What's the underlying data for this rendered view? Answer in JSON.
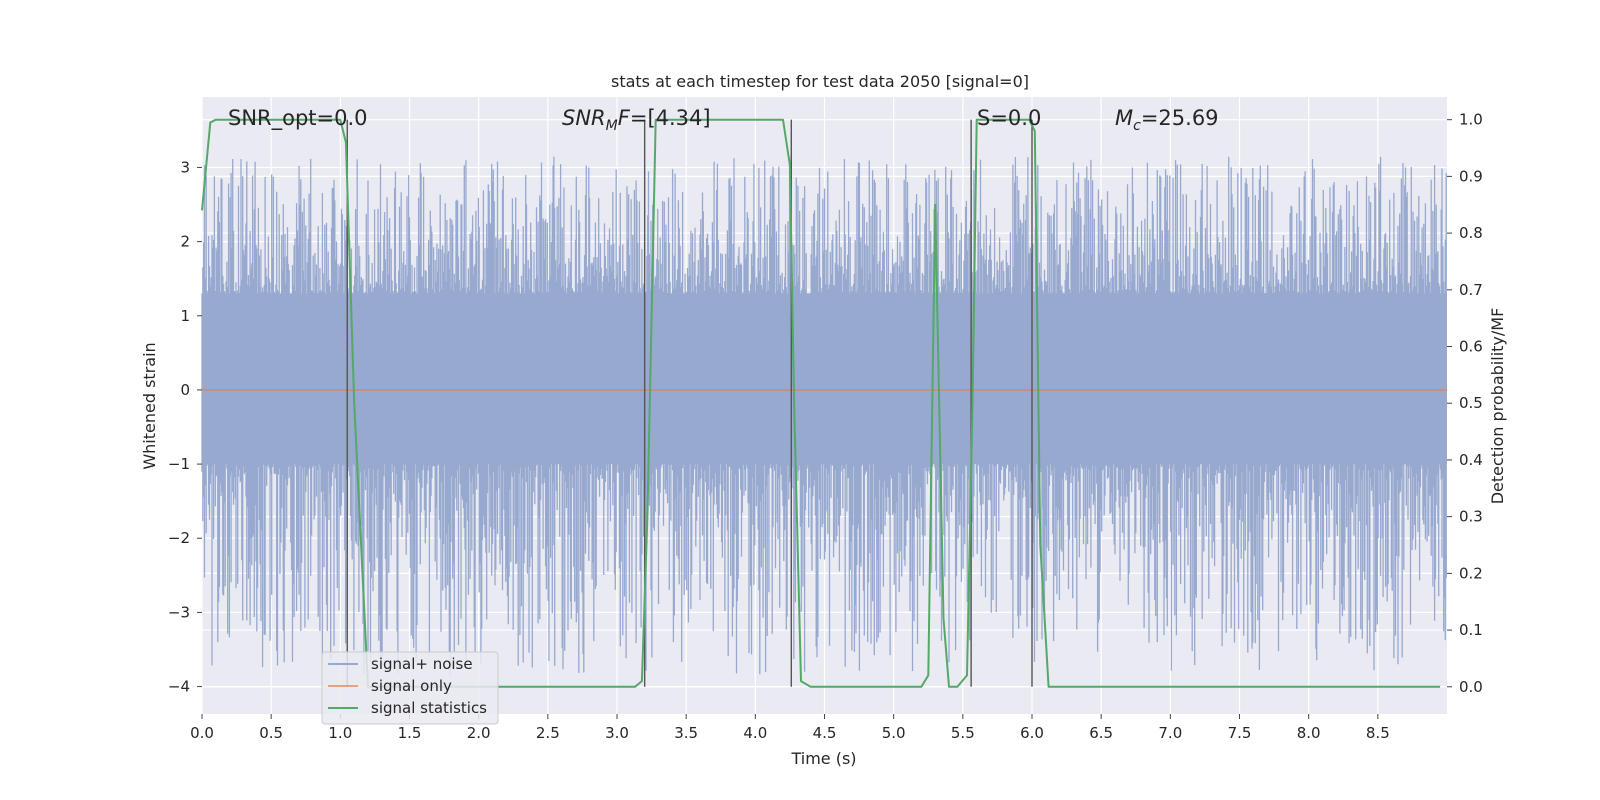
{
  "chart_data": {
    "type": "line",
    "title": "stats at each timestep for test data 2050 [signal=0]",
    "xlabel": "Time (s)",
    "ylabel": "Whitened strain",
    "y2label": "Detection probability/MF",
    "xlim": [
      0.0,
      9.0
    ],
    "ylim": [
      -4.37,
      3.95
    ],
    "y2lim": [
      -0.048,
      1.04
    ],
    "x_ticks": [
      "0.0",
      "0.5",
      "1.0",
      "1.5",
      "2.0",
      "2.5",
      "3.0",
      "3.5",
      "4.0",
      "4.5",
      "5.0",
      "5.5",
      "6.0",
      "6.5",
      "7.0",
      "7.5",
      "8.0",
      "8.5"
    ],
    "y_ticks": [
      "3",
      "2",
      "1",
      "0",
      "−1",
      "−2",
      "−3",
      "−4"
    ],
    "y2_ticks": [
      "1.0",
      "0.9",
      "0.8",
      "0.7",
      "0.6",
      "0.5",
      "0.4",
      "0.3",
      "0.2",
      "0.1",
      "0.0"
    ],
    "grid": true,
    "legend_position": "lower-left",
    "annotations": [
      {
        "id": "snr-opt",
        "text": "SNR_opt=0.0",
        "x": 0.19,
        "y": 3.65
      },
      {
        "id": "snr-mf",
        "text": "[4.34]",
        "x": 2.6,
        "y": 3.65
      },
      {
        "id": "s-value",
        "text": "S=0.0",
        "x": 5.62,
        "y": 3.65
      },
      {
        "id": "mc-value",
        "text": "=25.69",
        "x": 6.58,
        "y": 3.65
      }
    ],
    "vertical_lines": [
      1.05,
      3.2,
      4.26,
      5.56,
      6.0
    ],
    "series": [
      {
        "name": "signal+ noise",
        "axis": "left",
        "color": "#97a9cf",
        "kind": "noise",
        "sample_spacing": 0.006,
        "envelope": {
          "core_upper": 1.3,
          "core_lower": -1.0,
          "peak_max": 3.15,
          "trough_min": -3.85
        }
      },
      {
        "name": "signal only",
        "axis": "left",
        "color": "#dd8452",
        "x": [
          0.0,
          9.0
        ],
        "y": [
          0.0,
          0.0
        ]
      },
      {
        "name": "signal statistics",
        "axis": "right",
        "color": "#55a868",
        "x": [
          0.0,
          0.06,
          0.1,
          0.2,
          0.95,
          1.0,
          1.04,
          1.1,
          1.2,
          3.13,
          3.18,
          3.22,
          3.28,
          4.2,
          4.25,
          4.28,
          4.33,
          4.4,
          5.2,
          5.25,
          5.3,
          5.36,
          5.4,
          5.46,
          5.53,
          5.57,
          5.6,
          5.66,
          5.98,
          6.02,
          6.06,
          6.12,
          6.2,
          7.0,
          8.95
        ],
        "y": [
          0.84,
          0.995,
          1.0,
          1.0,
          1.0,
          1.0,
          0.96,
          0.5,
          0.0,
          0.0,
          0.01,
          0.3,
          1.0,
          1.0,
          0.92,
          0.5,
          0.01,
          0.0,
          0.0,
          0.02,
          0.85,
          0.12,
          0.0,
          0.0,
          0.02,
          0.5,
          1.0,
          1.0,
          1.0,
          0.98,
          0.25,
          0.0,
          0.0,
          0.0,
          0.0
        ]
      }
    ]
  }
}
